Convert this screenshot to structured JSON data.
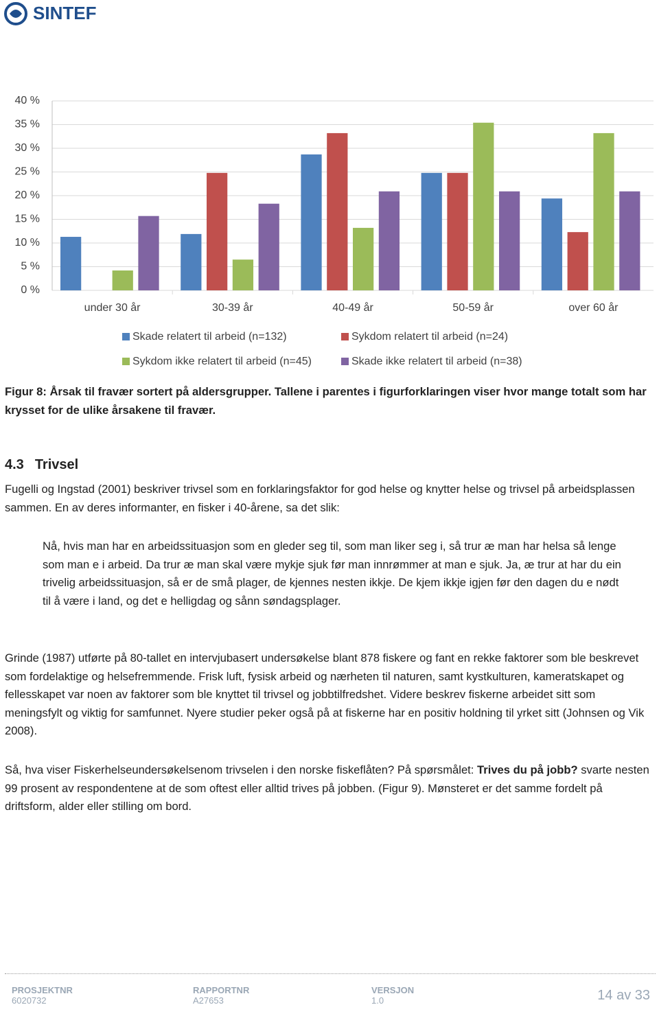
{
  "header": {
    "logo": "SINTEF"
  },
  "chart_data": {
    "type": "bar",
    "categories": [
      "under 30 år",
      "30-39 år",
      "40-49 år",
      "50-59 år",
      "over 60 år"
    ],
    "series": [
      {
        "name": "Skade relatert til arbeid (n=132)",
        "color": "#4f81bd",
        "values": [
          11.3,
          11.9,
          28.7,
          24.8,
          19.4
        ]
      },
      {
        "name": "Sykdom relatert til arbeid (n=24)",
        "color": "#c0504d",
        "values": [
          0,
          24.8,
          33.2,
          24.8,
          12.3
        ]
      },
      {
        "name": "Sykdom ikke relatert til arbeid (n=45)",
        "color": "#9bbb59",
        "values": [
          4.2,
          6.5,
          13.2,
          35.4,
          33.2
        ]
      },
      {
        "name": "Skade ikke relatert til arbeid (n=38)",
        "color": "#8064a2",
        "values": [
          15.7,
          18.3,
          20.9,
          20.9,
          20.9
        ]
      }
    ],
    "ylim": [
      0,
      40
    ],
    "yticks": [
      {
        "value": 0,
        "label": "0 %"
      },
      {
        "value": 5,
        "label": "5 %"
      },
      {
        "value": 10,
        "label": "10 %"
      },
      {
        "value": 15,
        "label": "15 %"
      },
      {
        "value": 20,
        "label": "20 %"
      },
      {
        "value": 25,
        "label": "25 %"
      },
      {
        "value": 30,
        "label": "30 %"
      },
      {
        "value": 35,
        "label": "35 %"
      },
      {
        "value": 40,
        "label": "40 %"
      }
    ],
    "grid": true,
    "legend": "bottom"
  },
  "caption": "Figur 8: Årsak til fravær sortert på aldersgrupper. Tallene i parentes i figurforklaringen viser hvor mange totalt som har krysset for de ulike årsakene til fravær.",
  "section": {
    "number": "4.3",
    "title": "Trivsel"
  },
  "paragraphs": [
    "Fugelli og Ingstad (2001) beskriver trivsel som en forklaringsfaktor for god helse og knytter helse og trivsel på arbeidsplassen sammen. En av deres informanter, en fisker i 40-årene, sa det slik:",
    "Grinde (1987) utførte på 80-tallet en intervjubasert undersøkelse blant 878 fiskere og fant en rekke faktorer som ble beskrevet som fordelaktige og helsefremmende. Frisk luft, fysisk arbeid og nærheten til naturen, samt kystkulturen, kameratskapet og fellesskapet var noen av faktorer som ble knyttet til trivsel og jobbtilfredshet. Videre beskrev fiskerne arbeidet sitt som meningsfylt og viktig for samfunnet. Nyere studier peker også på at fiskerne har en positiv holdning til yrket sitt (Johnsen og Vik 2008)."
  ],
  "quote": "Nå, hvis man har en arbeidssituasjon som en gleder seg til, som man liker seg i, så trur æ man har helsa så lenge som man e i arbeid. Da trur æ man skal være mykje sjuk før man innrømmer at man e sjuk. Ja, æ trur at har du ein trivelig arbeidssituasjon, så er de små plager, de kjennes nesten ikkje. De kjem ikkje igjen før den dagen du e nødt til å være i land, og det e helligdag og sånn søndagsplager.",
  "last_paragraph": [
    "Så, hva viser Fiskerhelseundersøkelsenom trivselen i den norske fiskeflåten? På spørsmålet: ",
    "Trives du på jobb?",
    " svarte nesten 99 prosent av respondentene at de som oftest eller alltid trives på jobben. (Figur 9). Mønsteret er det samme fordelt på driftsform, alder eller stilling om bord."
  ],
  "footer": {
    "fields": [
      {
        "label": "PROSJEKTNR",
        "value": "6020732"
      },
      {
        "label": "RAPPORTNR",
        "value": "A27653"
      },
      {
        "label": "VERSJON",
        "value": "1.0"
      }
    ],
    "page": "14 av 33"
  }
}
